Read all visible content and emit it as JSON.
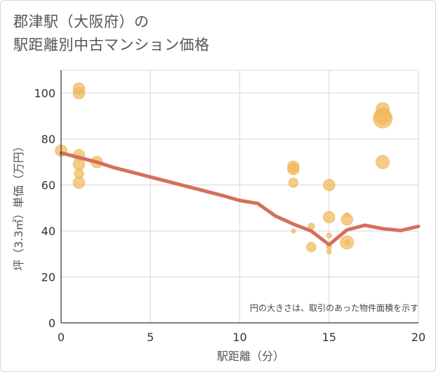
{
  "page": {
    "title_line1": "郡津駅（大阪府）の",
    "title_line2": "駅距離別中古マンション価格"
  },
  "chart_data": {
    "type": "scatter",
    "xlabel": "駅距離（分）",
    "ylabel": "坪（3.3㎡）単価（万円）",
    "xlim": [
      0,
      20
    ],
    "ylim": [
      0,
      110
    ],
    "xticks": [
      0,
      5,
      10,
      15,
      20
    ],
    "yticks": [
      0,
      20,
      40,
      60,
      80,
      100
    ],
    "grid": true,
    "annotation": "円の大きさは、取引のあった物件面積を示す",
    "colors": {
      "bubble": "#f0b85a",
      "line": "#d4705a",
      "grid": "#d0d8e0"
    },
    "bubbles": [
      {
        "x": 0,
        "y": 75,
        "size": 3
      },
      {
        "x": 1,
        "y": 102,
        "size": 3
      },
      {
        "x": 1,
        "y": 100,
        "size": 3
      },
      {
        "x": 1,
        "y": 73,
        "size": 3
      },
      {
        "x": 1,
        "y": 69,
        "size": 3
      },
      {
        "x": 1,
        "y": 65,
        "size": 2
      },
      {
        "x": 1,
        "y": 61,
        "size": 3
      },
      {
        "x": 2,
        "y": 70,
        "size": 3
      },
      {
        "x": 13,
        "y": 68,
        "size": 3
      },
      {
        "x": 13,
        "y": 67,
        "size": 3
      },
      {
        "x": 13,
        "y": 61,
        "size": 2
      },
      {
        "x": 13,
        "y": 40,
        "size": 0.4
      },
      {
        "x": 14,
        "y": 42,
        "size": 1
      },
      {
        "x": 14,
        "y": 33,
        "size": 2
      },
      {
        "x": 15,
        "y": 60,
        "size": 3
      },
      {
        "x": 15,
        "y": 46,
        "size": 3
      },
      {
        "x": 15,
        "y": 38,
        "size": 0.6
      },
      {
        "x": 15,
        "y": 33,
        "size": 0.6
      },
      {
        "x": 15,
        "y": 31,
        "size": 0.5
      },
      {
        "x": 16,
        "y": 47,
        "size": 0.5
      },
      {
        "x": 16,
        "y": 45,
        "size": 3
      },
      {
        "x": 16,
        "y": 35,
        "size": 4
      },
      {
        "x": 16,
        "y": 35,
        "size": 0.5
      },
      {
        "x": 18,
        "y": 93,
        "size": 4
      },
      {
        "x": 18,
        "y": 90,
        "size": 6
      },
      {
        "x": 18,
        "y": 89,
        "size": 8
      },
      {
        "x": 18,
        "y": 70,
        "size": 4
      }
    ],
    "trend": {
      "x": [
        0,
        1,
        2,
        3,
        4,
        5,
        6,
        7,
        8,
        9,
        10,
        11,
        12,
        13,
        14,
        15,
        16,
        17,
        18,
        19,
        20
      ],
      "y": [
        74,
        72,
        70,
        67.5,
        65.5,
        63.5,
        61.5,
        59.5,
        57.5,
        55.5,
        53.3,
        52,
        46.5,
        43,
        40,
        34,
        40.5,
        42.5,
        41,
        40.2,
        42
      ]
    }
  }
}
